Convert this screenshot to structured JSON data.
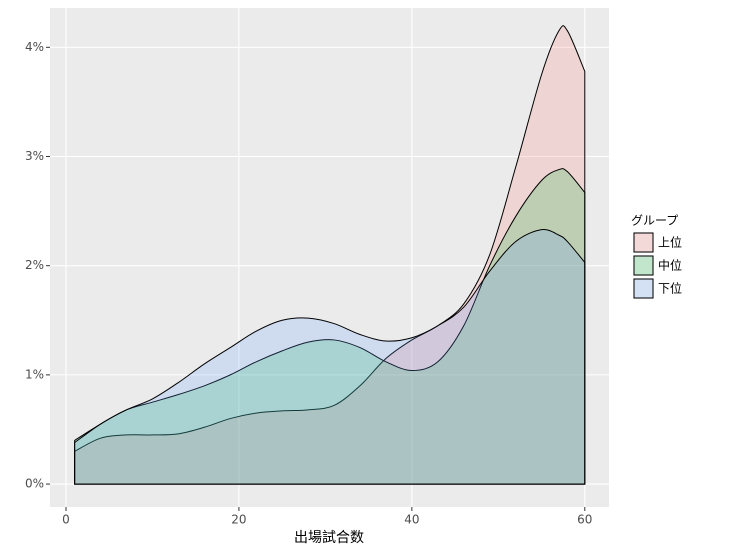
{
  "chart_data": {
    "type": "area",
    "x_label": "出場試合数",
    "legend_title": "グループ",
    "x": [
      1,
      4,
      7,
      10,
      13,
      16,
      19,
      22,
      25,
      28,
      31,
      34,
      37,
      40,
      43,
      46,
      49,
      52,
      55,
      57,
      58,
      60
    ],
    "series": [
      {
        "name": "上位",
        "color": "#F8766D",
        "values": [
          0.3,
          0.42,
          0.45,
          0.45,
          0.46,
          0.52,
          0.6,
          0.65,
          0.67,
          0.68,
          0.72,
          0.9,
          1.15,
          1.32,
          1.45,
          1.65,
          2.1,
          2.9,
          3.75,
          4.15,
          4.15,
          3.78
        ]
      },
      {
        "name": "中位",
        "color": "#00BA38",
        "values": [
          0.4,
          0.55,
          0.68,
          0.75,
          0.82,
          0.9,
          1.0,
          1.12,
          1.22,
          1.3,
          1.32,
          1.25,
          1.12,
          1.04,
          1.12,
          1.45,
          2.0,
          2.45,
          2.78,
          2.88,
          2.86,
          2.67
        ]
      },
      {
        "name": "下位",
        "color": "#619CFF",
        "values": [
          0.38,
          0.55,
          0.68,
          0.78,
          0.93,
          1.1,
          1.25,
          1.4,
          1.5,
          1.52,
          1.47,
          1.37,
          1.31,
          1.34,
          1.45,
          1.62,
          1.95,
          2.22,
          2.33,
          2.28,
          2.22,
          2.03
        ]
      }
    ],
    "fill_alpha": 0.2,
    "xlim": [
      -1.85,
      62.8
    ],
    "ylim": [
      -0.21,
      4.36
    ],
    "xticks": [
      0,
      20,
      40,
      60
    ],
    "yticks": [
      {
        "value": 0,
        "label": "0%"
      },
      {
        "value": 1,
        "label": "1%"
      },
      {
        "value": 2,
        "label": "2%"
      },
      {
        "value": 3,
        "label": "3%"
      },
      {
        "value": 4,
        "label": "4%"
      }
    ],
    "grid": true,
    "legend_position": "right"
  }
}
